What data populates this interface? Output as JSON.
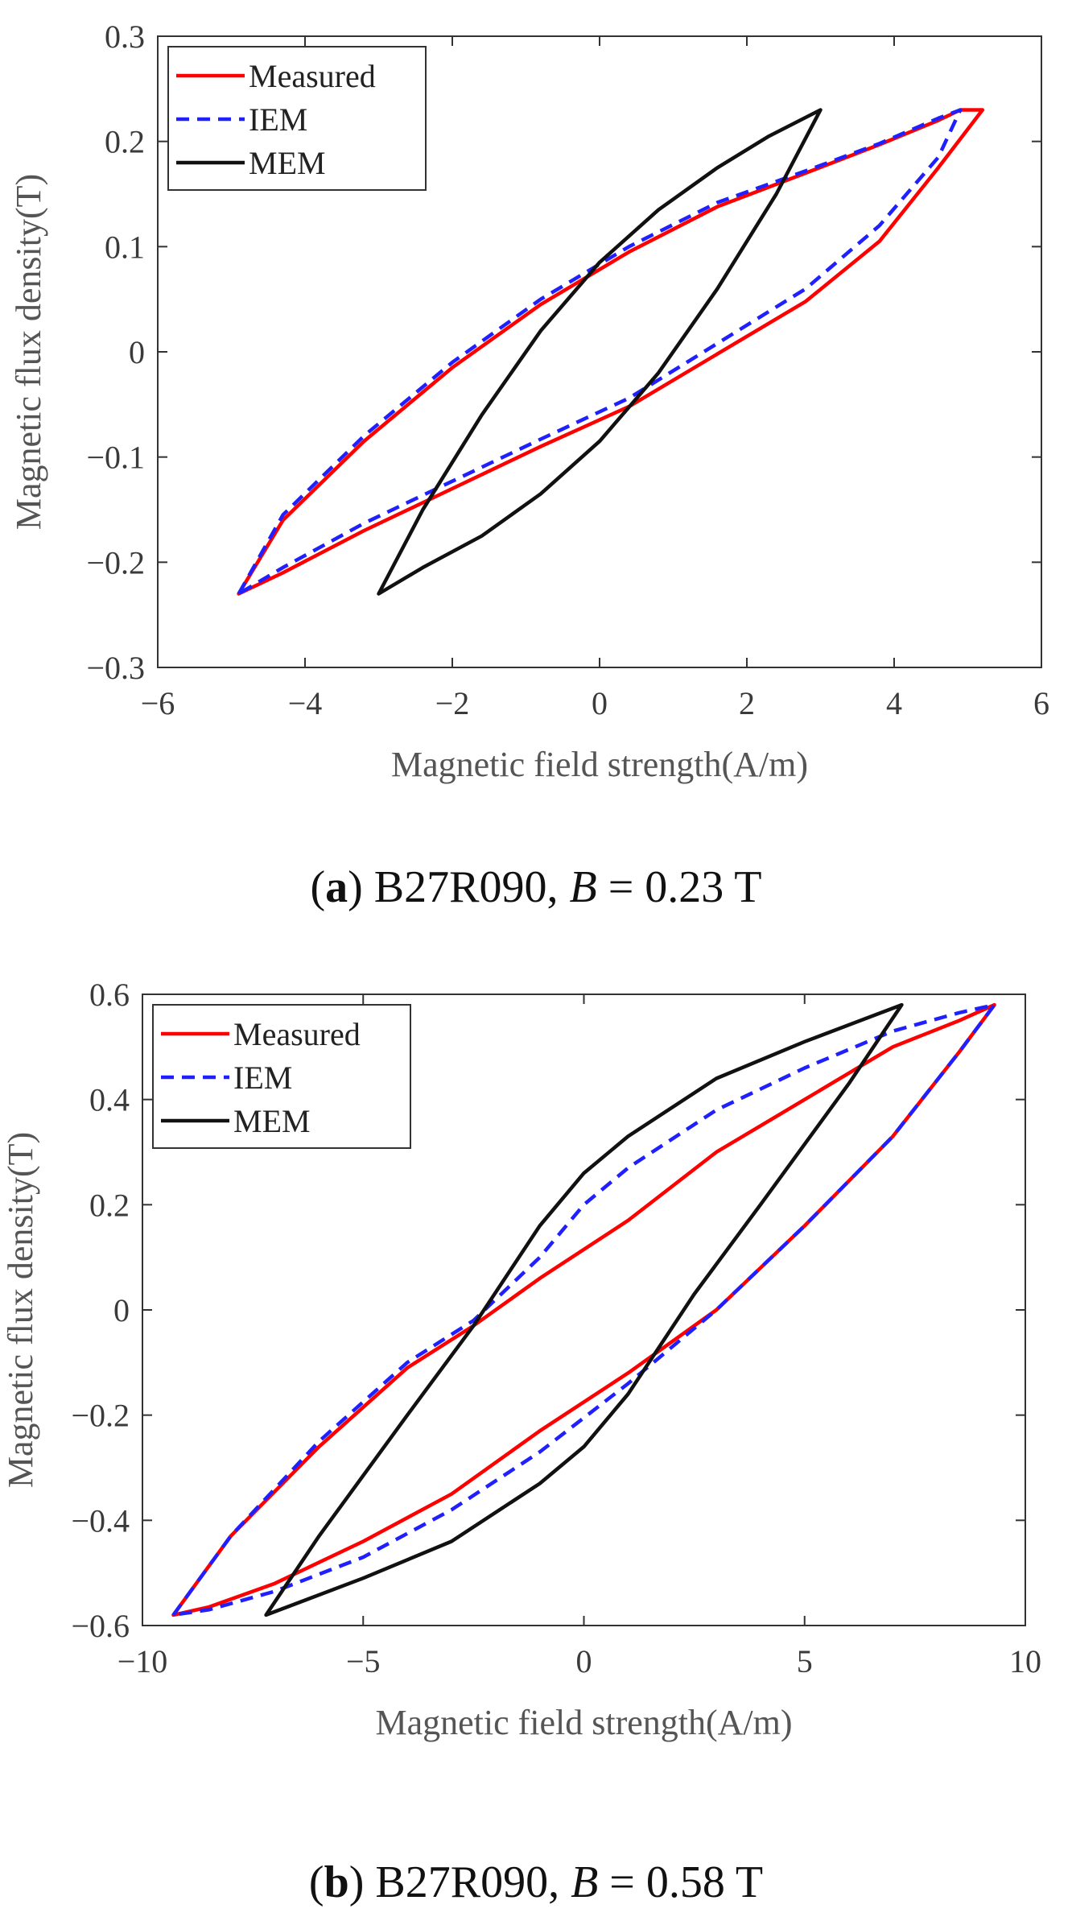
{
  "chart_data": [
    {
      "type": "line",
      "panel_label": "a",
      "caption_text": "B27R090,",
      "caption_var": "B",
      "caption_value": "= 0.23 T",
      "xlabel": "Magnetic field strength(A/m)",
      "ylabel": "Magnetic flux density(T)",
      "xlim": [
        -6,
        6
      ],
      "ylim": [
        -0.3,
        0.3
      ],
      "xticks": [
        -6,
        -4,
        -2,
        0,
        2,
        4,
        6
      ],
      "yticks": [
        -0.3,
        -0.2,
        -0.1,
        0,
        0.1,
        0.2,
        0.3
      ],
      "xtick_labels": [
        "−6",
        "−4",
        "−2",
        "0",
        "2",
        "4",
        "6"
      ],
      "ytick_labels": [
        "−0.3",
        "−0.2",
        "−0.1",
        "0",
        "0.1",
        "0.2",
        "0.3"
      ],
      "grid": false,
      "legend_position": "top-left",
      "series": [
        {
          "name": "Measured",
          "color": "#ff0000",
          "style": "solid",
          "x": [
            -4.9,
            -4.3,
            -3.2,
            -2.0,
            -0.8,
            0.4,
            1.6,
            2.8,
            3.8,
            4.6,
            4.9,
            5.2,
            4.6,
            3.8,
            2.8,
            1.6,
            0.4,
            -0.8,
            -2.0,
            -3.2,
            -4.3,
            -4.9
          ],
          "y": [
            -0.23,
            -0.16,
            -0.085,
            -0.015,
            0.045,
            0.095,
            0.138,
            0.17,
            0.197,
            0.22,
            0.23,
            0.23,
            0.175,
            0.105,
            0.048,
            -0.002,
            -0.052,
            -0.09,
            -0.13,
            -0.17,
            -0.21,
            -0.23
          ]
        },
        {
          "name": "IEM",
          "color": "#2020ff",
          "style": "dashed",
          "x": [
            -4.9,
            -4.3,
            -3.2,
            -2.0,
            -0.8,
            0.4,
            1.6,
            2.8,
            3.8,
            4.6,
            4.9,
            4.6,
            3.8,
            2.8,
            1.6,
            0.4,
            -0.8,
            -2.0,
            -3.2,
            -4.3,
            -4.9
          ],
          "y": [
            -0.23,
            -0.155,
            -0.08,
            -0.01,
            0.05,
            0.1,
            0.142,
            0.172,
            0.198,
            0.222,
            0.23,
            0.185,
            0.12,
            0.06,
            0.008,
            -0.044,
            -0.083,
            -0.123,
            -0.163,
            -0.205,
            -0.23
          ]
        },
        {
          "name": "MEM",
          "color": "#111111",
          "style": "solid",
          "x": [
            -3.0,
            -2.4,
            -1.6,
            -0.8,
            0.0,
            0.8,
            1.6,
            2.3,
            3.0,
            2.4,
            1.6,
            0.8,
            0.0,
            -0.8,
            -1.6,
            -2.4,
            -3.0
          ],
          "y": [
            -0.23,
            -0.15,
            -0.06,
            0.02,
            0.085,
            0.135,
            0.175,
            0.205,
            0.23,
            0.15,
            0.06,
            -0.02,
            -0.085,
            -0.135,
            -0.175,
            -0.205,
            -0.23
          ]
        }
      ]
    },
    {
      "type": "line",
      "panel_label": "b",
      "caption_text": "B27R090,",
      "caption_var": "B",
      "caption_value": "= 0.58 T",
      "xlabel": "Magnetic field strength(A/m)",
      "ylabel": "Magnetic flux density(T)",
      "xlim": [
        -10,
        10
      ],
      "ylim": [
        -0.6,
        0.6
      ],
      "xticks": [
        -10,
        -5,
        0,
        5,
        10
      ],
      "yticks": [
        -0.6,
        -0.4,
        -0.2,
        0,
        0.2,
        0.4,
        0.6
      ],
      "xtick_labels": [
        "−10",
        "−5",
        "0",
        "5",
        "10"
      ],
      "ytick_labels": [
        "−0.6",
        "−0.4",
        "−0.2",
        "0",
        "0.2",
        "0.4",
        "0.6"
      ],
      "grid": false,
      "legend_position": "top-left",
      "series": [
        {
          "name": "Measured",
          "color": "#ff0000",
          "style": "solid",
          "x": [
            -9.3,
            -8.0,
            -6.0,
            -4.0,
            -2.5,
            -1.0,
            1.0,
            3.0,
            5.0,
            7.0,
            8.5,
            9.3,
            8.5,
            7.0,
            5.0,
            3.0,
            1.0,
            -1.0,
            -3.0,
            -5.0,
            -7.0,
            -8.5,
            -9.3
          ],
          "y": [
            -0.58,
            -0.43,
            -0.26,
            -0.11,
            -0.03,
            0.06,
            0.17,
            0.3,
            0.4,
            0.5,
            0.55,
            0.58,
            0.49,
            0.33,
            0.16,
            0.0,
            -0.12,
            -0.23,
            -0.35,
            -0.44,
            -0.52,
            -0.565,
            -0.58
          ]
        },
        {
          "name": "IEM",
          "color": "#2020ff",
          "style": "dashed",
          "x": [
            -9.3,
            -8.0,
            -6.0,
            -4.0,
            -2.5,
            -1.0,
            0.0,
            1.0,
            3.0,
            5.0,
            7.0,
            8.5,
            9.3,
            8.5,
            7.0,
            5.0,
            3.0,
            1.0,
            -1.0,
            -3.0,
            -5.0,
            -7.0,
            -8.5,
            -9.3
          ],
          "y": [
            -0.58,
            -0.43,
            -0.25,
            -0.1,
            -0.02,
            0.1,
            0.2,
            0.27,
            0.38,
            0.46,
            0.53,
            0.565,
            0.58,
            0.49,
            0.33,
            0.16,
            0.0,
            -0.14,
            -0.27,
            -0.38,
            -0.47,
            -0.535,
            -0.57,
            -0.58
          ]
        },
        {
          "name": "MEM",
          "color": "#111111",
          "style": "solid",
          "x": [
            -7.2,
            -6.0,
            -4.0,
            -2.5,
            -1.0,
            0.0,
            1.0,
            3.0,
            5.0,
            7.2,
            6.0,
            4.0,
            2.5,
            1.0,
            0.0,
            -1.0,
            -3.0,
            -5.0,
            -7.2
          ],
          "y": [
            -0.58,
            -0.43,
            -0.2,
            -0.03,
            0.16,
            0.26,
            0.33,
            0.44,
            0.51,
            0.58,
            0.43,
            0.2,
            0.03,
            -0.16,
            -0.26,
            -0.33,
            -0.44,
            -0.51,
            -0.58
          ]
        }
      ]
    }
  ]
}
